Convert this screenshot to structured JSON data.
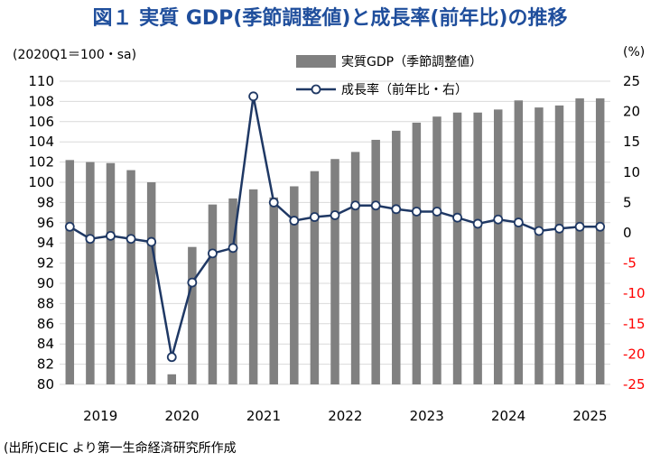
{
  "title": "図１ 実質 GDP(季節調整値)と成長率(前年比)の推移",
  "left_axis_note": "(2020Q1＝100・sa)",
  "right_axis_note": "(%)",
  "source": "(出所)CEIC より第一生命経済研究所作成",
  "colors": {
    "bar": "#808080",
    "line": "#1f3864",
    "negative_tick": "#ff0000"
  },
  "chart_data": {
    "type": "bar",
    "legend_position": "top-center",
    "year_labels": [
      "2019",
      "2020",
      "2021",
      "2022",
      "2023",
      "2024",
      "2025"
    ],
    "quarters": [
      "2019Q1",
      "2019Q2",
      "2019Q3",
      "2019Q4",
      "2020Q1",
      "2020Q2",
      "2020Q3",
      "2020Q4",
      "2021Q1",
      "2021Q2",
      "2021Q3",
      "2021Q4",
      "2022Q1",
      "2022Q2",
      "2022Q3",
      "2022Q4",
      "2023Q1",
      "2023Q2",
      "2023Q3",
      "2023Q4",
      "2024Q1",
      "2024Q2",
      "2024Q3",
      "2024Q4",
      "2025Q1",
      "2025Q2",
      "2025Q3"
    ],
    "left_axis": {
      "min": 80,
      "max": 110,
      "step": 2
    },
    "right_axis": {
      "min": -25,
      "max": 25,
      "step": 5
    },
    "series": [
      {
        "name": "実質GDP（季節調整値）",
        "type": "bar",
        "axis": "left",
        "values": [
          102.2,
          102.0,
          101.9,
          101.2,
          100.0,
          81.0,
          93.6,
          97.8,
          98.4,
          99.3,
          98.5,
          99.6,
          101.1,
          102.3,
          103.0,
          104.2,
          105.1,
          105.9,
          106.5,
          106.9,
          106.9,
          107.2,
          108.1,
          107.4,
          107.6,
          108.3,
          108.3
        ]
      },
      {
        "name": "成長率（前年比・右）",
        "type": "line",
        "axis": "right",
        "values": [
          1.0,
          -1.0,
          -0.5,
          -1.0,
          -1.5,
          -20.5,
          -8.2,
          -3.4,
          -2.5,
          22.5,
          5.0,
          2.0,
          2.6,
          2.9,
          4.5,
          4.5,
          3.9,
          3.5,
          3.5,
          2.5,
          1.5,
          2.2,
          1.7,
          0.3,
          0.7,
          1.0,
          1.0
        ]
      }
    ]
  }
}
